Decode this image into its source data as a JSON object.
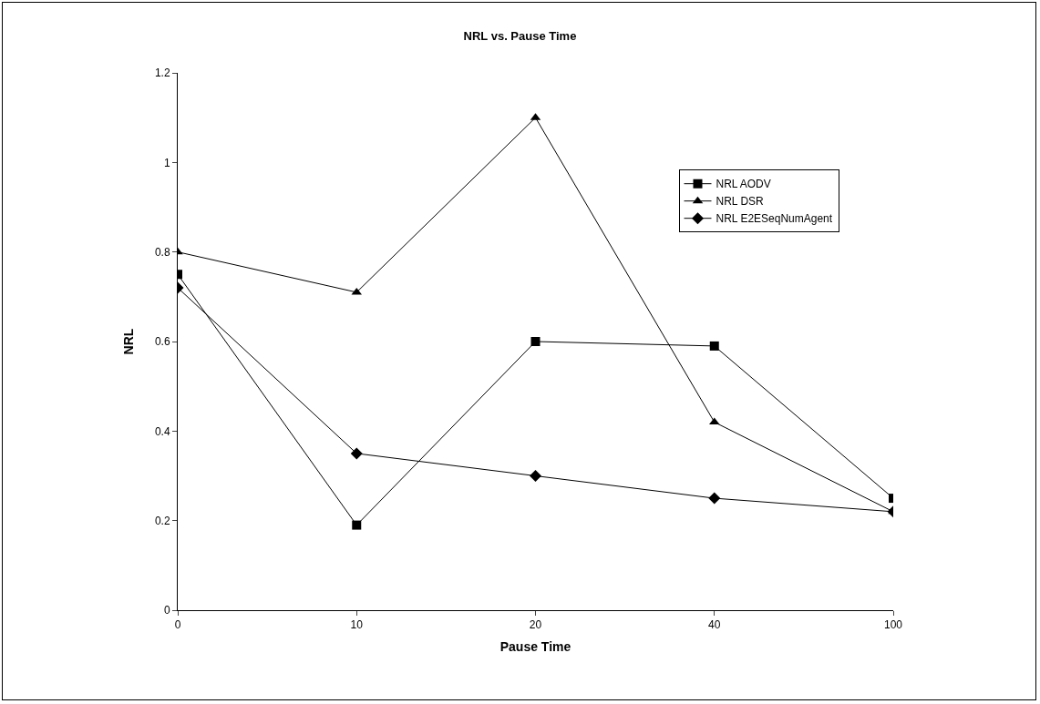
{
  "chart_data": {
    "type": "line",
    "title": "NRL vs. Pause Time",
    "xlabel": "Pause Time",
    "ylabel": "NRL",
    "categories": [
      "0",
      "10",
      "20",
      "40",
      "100"
    ],
    "series": [
      {
        "name": "NRL AODV",
        "color": "#000000",
        "marker": "square",
        "values": [
          0.75,
          0.19,
          0.6,
          0.59,
          0.25
        ]
      },
      {
        "name": "NRL DSR",
        "color": "#000000",
        "marker": "triangle",
        "values": [
          0.8,
          0.71,
          1.1,
          0.42,
          0.22
        ]
      },
      {
        "name": "NRL E2ESeqNumAgent",
        "color": "#000000",
        "marker": "diamond",
        "values": [
          0.72,
          0.35,
          0.3,
          0.25,
          0.22
        ]
      }
    ],
    "ylim": [
      0,
      1.2
    ],
    "yticks": [
      0,
      0.2,
      0.4,
      0.6,
      0.8,
      1,
      1.2
    ],
    "grid": false,
    "legend": "right",
    "line_style": "solid"
  }
}
